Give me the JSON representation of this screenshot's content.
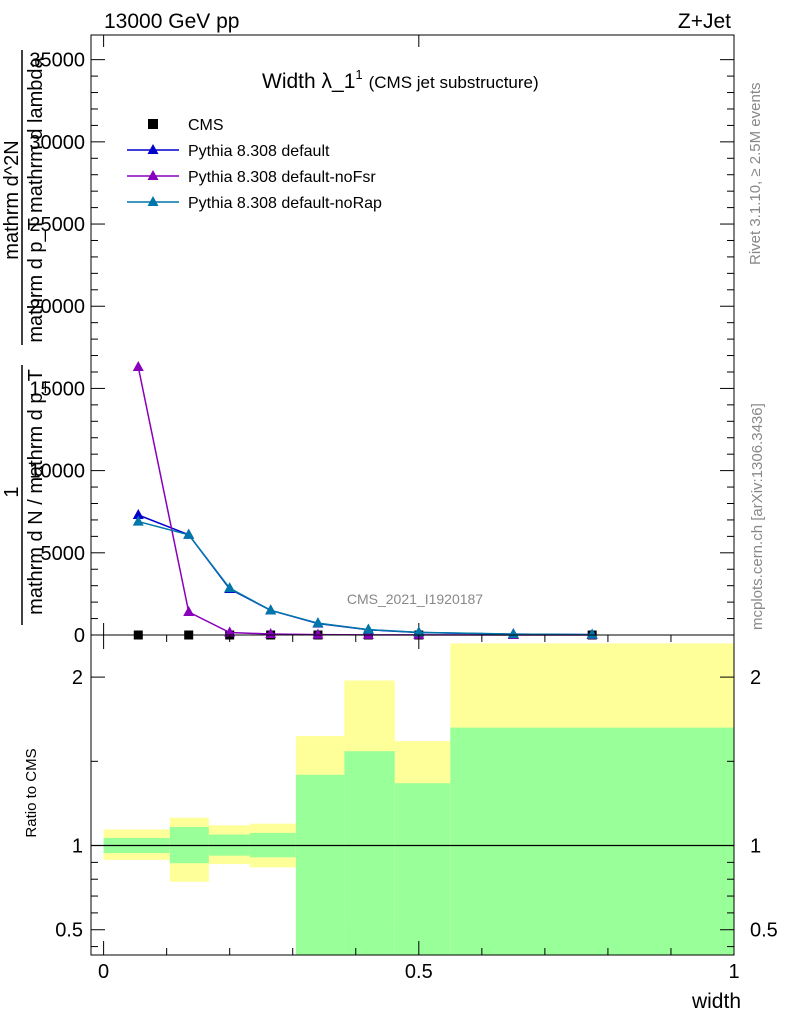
{
  "header": {
    "left": "13000 GeV pp",
    "right": "Z+Jet"
  },
  "side": {
    "rivet": "Rivet 3.1.10, ≥ 2.5M events",
    "mcplots": "mcplots.cern.ch [arXiv:1306.3436]"
  },
  "plot_title": {
    "main": "Width λ_1",
    "sup": "1",
    "sub": "(CMS jet substructure)"
  },
  "analysis_label": "CMS_2021_I1920187",
  "ylabel_main": {
    "numer": "1",
    "denom": "mathrm d N / mathrm d p_T",
    "frac_numer": "mathrm d^2N",
    "frac_denom": "mathrm d p_T mathrm d lambda"
  },
  "colors": {
    "cms": "#000000",
    "default": "#0000cc",
    "noFsr": "#8800bb",
    "noRap": "#0077aa",
    "band_yellow": "#ffff99",
    "band_green": "#99ff99"
  },
  "chart_data": [
    {
      "type": "line",
      "panel": "main",
      "xlim": [
        -0.02,
        1.0
      ],
      "ylim": [
        0,
        36500
      ],
      "yticks": [
        0,
        5000,
        10000,
        15000,
        20000,
        25000,
        30000,
        35000
      ],
      "ytick_labels": [
        "0",
        "5000",
        "10000",
        "15000",
        "20000",
        "25000",
        "30000",
        "35000"
      ],
      "legend_position": "top-left",
      "series": [
        {
          "name": "CMS",
          "marker": "square",
          "color": "#000000",
          "x": [
            0.055,
            0.135,
            0.2,
            0.265,
            0.34,
            0.42,
            0.5,
            0.775
          ],
          "y": [
            0,
            0,
            0,
            0,
            0,
            0,
            0,
            0
          ]
        },
        {
          "name": "Pythia 8.308 default",
          "marker": "triangle",
          "color": "#0000cc",
          "x": [
            0.055,
            0.135,
            0.2,
            0.265,
            0.34,
            0.42,
            0.5,
            0.65,
            0.775
          ],
          "y": [
            7300,
            6100,
            2800,
            1500,
            700,
            320,
            150,
            50,
            20
          ]
        },
        {
          "name": "Pythia 8.308 default-noFsr",
          "marker": "triangle",
          "color": "#8800bb",
          "x": [
            0.055,
            0.135,
            0.2,
            0.265,
            0.34,
            0.42,
            0.5,
            0.65,
            0.775
          ],
          "y": [
            16300,
            1400,
            150,
            60,
            25,
            10,
            5,
            2,
            1
          ]
        },
        {
          "name": "Pythia 8.308 default-noRap",
          "marker": "triangle",
          "color": "#0077aa",
          "x": [
            0.055,
            0.135,
            0.2,
            0.265,
            0.34,
            0.42,
            0.5,
            0.65,
            0.775
          ],
          "y": [
            6900,
            6100,
            2850,
            1500,
            720,
            330,
            160,
            55,
            22
          ]
        }
      ]
    },
    {
      "type": "area",
      "panel": "ratio",
      "ylabel": "Ratio to CMS",
      "xlabel": "width",
      "xlim": [
        -0.02,
        1.0
      ],
      "ylim": [
        0.35,
        2.25
      ],
      "yticks": [
        0.5,
        1,
        2
      ],
      "ytick_labels": [
        "0.5",
        "1",
        "2"
      ],
      "xticks": [
        0,
        0.5,
        1
      ],
      "xtick_labels": [
        "0",
        "0.5",
        "1"
      ],
      "bins": [
        {
          "x0": 0.0,
          "x1": 0.105,
          "yellow": [
            0.915,
            1.095
          ],
          "green": [
            0.955,
            1.045
          ]
        },
        {
          "x0": 0.105,
          "x1": 0.167,
          "yellow": [
            0.785,
            1.165
          ],
          "green": [
            0.895,
            1.11
          ]
        },
        {
          "x0": 0.167,
          "x1": 0.232,
          "yellow": [
            0.89,
            1.12
          ],
          "green": [
            0.94,
            1.065
          ]
        },
        {
          "x0": 0.232,
          "x1": 0.305,
          "yellow": [
            0.87,
            1.13
          ],
          "green": [
            0.93,
            1.075
          ]
        },
        {
          "x0": 0.305,
          "x1": 0.382,
          "yellow": [
            0.35,
            1.65
          ],
          "green": [
            0.35,
            1.42
          ]
        },
        {
          "x0": 0.382,
          "x1": 0.462,
          "yellow": [
            0.52,
            1.98
          ],
          "green": [
            0.35,
            1.56
          ]
        },
        {
          "x0": 0.462,
          "x1": 0.55,
          "yellow": [
            0.385,
            1.62
          ],
          "green": [
            0.35,
            1.37
          ]
        },
        {
          "x0": 0.55,
          "x1": 1.0,
          "yellow": [
            0.35,
            2.2
          ],
          "green": [
            0.35,
            1.7
          ]
        }
      ],
      "reference_line": 1.0
    }
  ]
}
